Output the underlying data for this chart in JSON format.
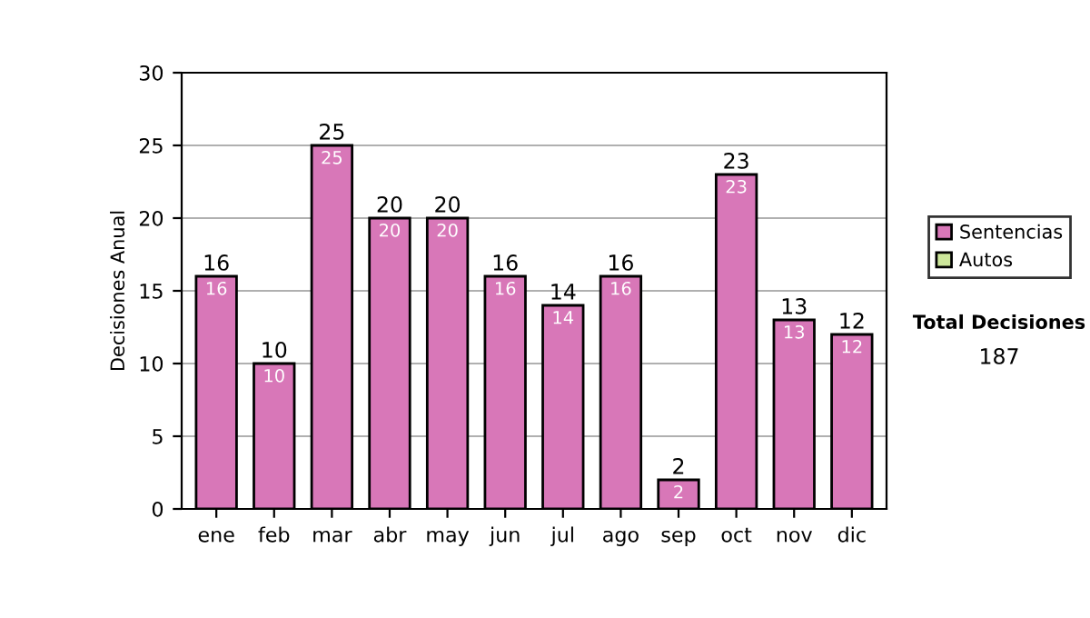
{
  "chart_data": {
    "type": "bar",
    "stacked": true,
    "ylabel": "Decisiones Anual",
    "categories": [
      "ene",
      "feb",
      "mar",
      "abr",
      "may",
      "jun",
      "jul",
      "ago",
      "sep",
      "oct",
      "nov",
      "dic"
    ],
    "series": [
      {
        "name": "Sentencias",
        "color": "#d877b8",
        "values": [
          16,
          10,
          25,
          20,
          20,
          16,
          14,
          16,
          2,
          23,
          13,
          12
        ],
        "value_labels": [
          "16",
          "10",
          "25",
          "20",
          "20",
          "16",
          "14",
          "16",
          "2",
          "23",
          "13",
          "12"
        ]
      },
      {
        "name": "Autos",
        "color": "#cce69a",
        "values": [
          0,
          0,
          0,
          0,
          0,
          0,
          0,
          0,
          0,
          0,
          0,
          0
        ]
      }
    ],
    "totals": [
      "16",
      "10",
      "25",
      "20",
      "20",
      "16",
      "14",
      "16",
      "2",
      "23",
      "13",
      "12"
    ],
    "ylim": [
      0,
      30
    ],
    "yticks": [
      0,
      5,
      10,
      15,
      20,
      25,
      30
    ],
    "grid": "y",
    "legend": "right",
    "annotations": [
      "Total Decisiones",
      "187"
    ]
  }
}
